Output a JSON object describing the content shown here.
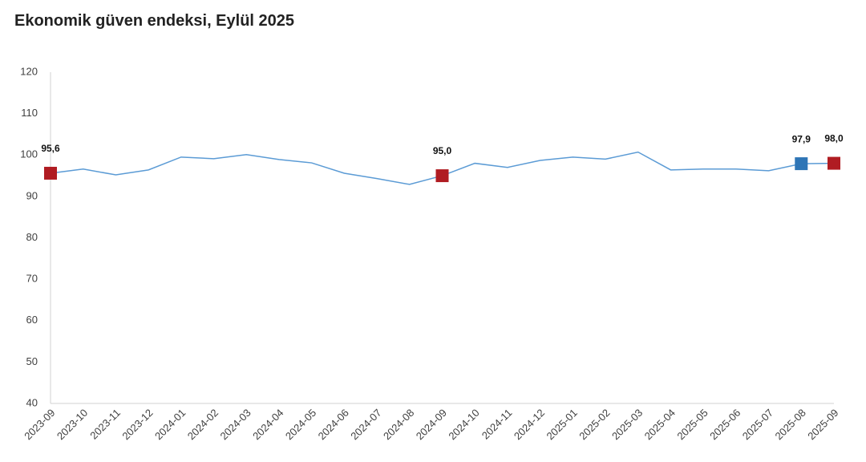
{
  "chart_data": {
    "type": "line",
    "title": "Ekonomik güven endeksi, Eylül 2025",
    "categories": [
      "2023-09",
      "2023-10",
      "2023-11",
      "2023-12",
      "2024-01",
      "2024-02",
      "2024-03",
      "2024-04",
      "2024-05",
      "2024-06",
      "2024-07",
      "2024-08",
      "2024-09",
      "2024-10",
      "2024-11",
      "2024-12",
      "2025-01",
      "2025-02",
      "2025-03",
      "2025-04",
      "2025-05",
      "2025-06",
      "2025-07",
      "2025-08",
      "2025-09"
    ],
    "series": [
      {
        "color": "#5b9bd5",
        "values": [
          95.6,
          96.6,
          95.2,
          96.4,
          99.5,
          99.1,
          100.1,
          98.9,
          98.1,
          95.6,
          94.3,
          92.9,
          95.0,
          98.0,
          97.0,
          98.7,
          99.5,
          99.0,
          100.7,
          96.4,
          96.6,
          96.6,
          96.2,
          97.9,
          98.0
        ],
        "value_labels": [
          "95,6",
          null,
          null,
          null,
          null,
          null,
          null,
          null,
          null,
          null,
          null,
          null,
          "95,0",
          null,
          null,
          null,
          null,
          null,
          null,
          null,
          null,
          null,
          null,
          "97,9",
          "98,0"
        ],
        "marker_colors": [
          "#b01c22",
          null,
          null,
          null,
          null,
          null,
          null,
          null,
          null,
          null,
          null,
          null,
          "#b01c22",
          null,
          null,
          null,
          null,
          null,
          null,
          null,
          null,
          null,
          null,
          "#2e75b6",
          "#b01c22"
        ]
      }
    ],
    "ylim": [
      40,
      120
    ],
    "yticks": [
      40,
      50,
      60,
      70,
      80,
      90,
      100,
      110,
      120
    ],
    "grid": false
  }
}
